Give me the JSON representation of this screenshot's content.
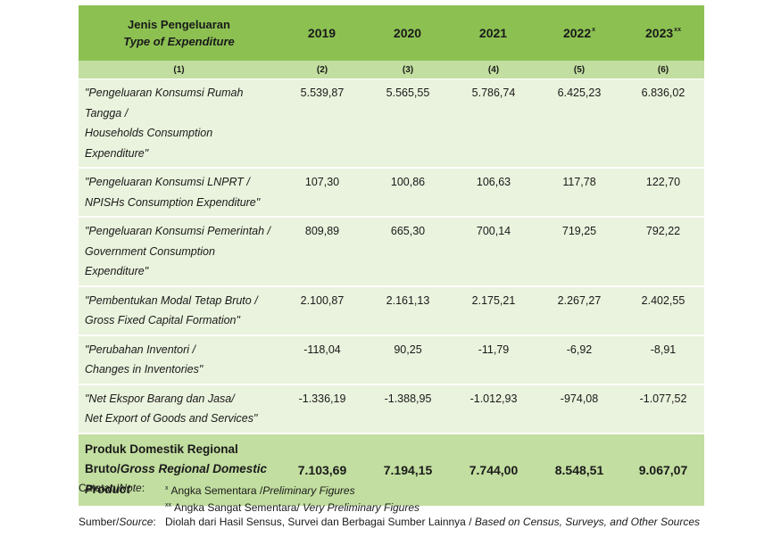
{
  "header": {
    "label_id": "Jenis Pengeluaran",
    "label_en": "Type of Expenditure",
    "years": [
      {
        "year": "2019",
        "mark": ""
      },
      {
        "year": "2020",
        "mark": ""
      },
      {
        "year": "2021",
        "mark": ""
      },
      {
        "year": "2022",
        "mark": "x"
      },
      {
        "year": "2023",
        "mark": "xx"
      }
    ]
  },
  "col_numbers": [
    "(1)",
    "(2)",
    "(3)",
    "(4)",
    "(5)",
    "(6)"
  ],
  "rows": [
    {
      "lines": [
        "\"Pengeluaran Konsumsi Rumah",
        "Tangga /",
        "Households Consumption Expenditure\""
      ],
      "values": [
        "5.539,87",
        "5.565,55",
        "5.786,74",
        "6.425,23",
        "6.836,02"
      ]
    },
    {
      "lines": [
        "\"Pengeluaran Konsumsi LNPRT /",
        "NPISHs Consumption Expenditure\""
      ],
      "values": [
        "107,30",
        "100,86",
        "106,63",
        "117,78",
        "122,70"
      ]
    },
    {
      "lines": [
        "\"Pengeluaran Konsumsi Pemerintah /",
        "Government Consumption",
        "Expenditure\""
      ],
      "values": [
        "809,89",
        "665,30",
        "700,14",
        "719,25",
        "792,22"
      ]
    },
    {
      "lines": [
        "\"Pembentukan Modal Tetap Bruto /",
        "Gross Fixed Capital Formation\""
      ],
      "values": [
        "2.100,87",
        "2.161,13",
        "2.175,21",
        "2.267,27",
        "2.402,55"
      ]
    },
    {
      "lines": [
        "\"Perubahan Inventori /",
        "Changes in Inventories\""
      ],
      "values": [
        "-118,04",
        "90,25",
        "-11,79",
        "-6,92",
        "-8,91"
      ]
    },
    {
      "lines": [
        "\"Net Ekspor Barang dan Jasa/",
        "Net Export of Goods and Services\""
      ],
      "values": [
        "-1.336,19",
        "-1.388,95",
        "-1.012,93",
        "-974,08",
        "-1.077,52"
      ]
    }
  ],
  "total": {
    "line1": "Produk Domestik Regional",
    "line2_id": "Bruto/",
    "line2_en": "Gross Regional Domestic",
    "line3_en": "Product",
    "values": [
      "7.103,69",
      "7.194,15",
      "7.744,00",
      "8.548,51",
      "9.067,07"
    ]
  },
  "notes": {
    "note_label_id": "Catatan/",
    "note_label_en": "Note",
    "note1_mark": "x",
    "note1_id": "Angka Sementara /",
    "note1_en": "Preliminary Figures",
    "note2_mark": "xx",
    "note2_id": "Angka Sangat Sementara/ ",
    "note2_en": "Very Preliminary Figures",
    "source_label_id": "Sumber/",
    "source_label_en": "Source",
    "source_id": "Diolah dari Hasil Sensus, Survei dan Berbagai Sumber Lainnya / ",
    "source_en": "Based on Census, Surveys, and Other Sources"
  }
}
